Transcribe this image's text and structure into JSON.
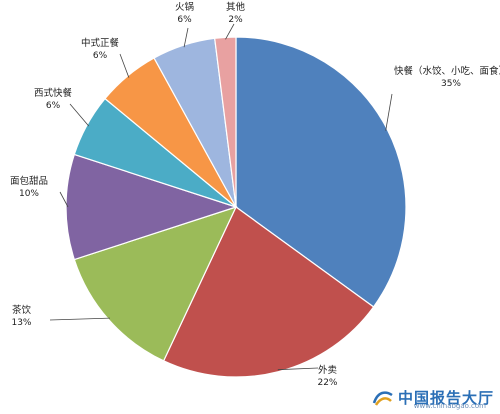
{
  "chart_data": {
    "type": "pie",
    "title": "",
    "categories": [
      "快餐（水饺、小吃、面食）",
      "外卖",
      "茶饮",
      "面包甜品",
      "西式快餐",
      "中式正餐",
      "火锅",
      "其他"
    ],
    "values": [
      35,
      22,
      13,
      10,
      6,
      6,
      6,
      2
    ],
    "value_labels": [
      "35%",
      "22%",
      "13%",
      "10%",
      "6%",
      "6%",
      "6%",
      "2%"
    ],
    "colors": [
      "#4f81bd",
      "#c0504d",
      "#9bbb59",
      "#8064a2",
      "#4bacc6",
      "#f79646",
      "#9eb6df",
      "#e8a1a1"
    ],
    "start_angle_deg": 0,
    "direction": "clockwise",
    "legend": "none",
    "label_style": "outside-with-leader-lines"
  },
  "watermark": {
    "brand_text": "中国报告大厅",
    "url_text": "www.chinabgao.com"
  }
}
